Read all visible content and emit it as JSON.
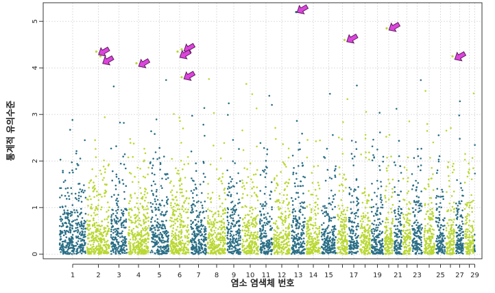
{
  "chart_data": {
    "type": "scatter",
    "title": "",
    "xlabel": "염소 염색체 번호",
    "ylabel": "통계적 유의수준",
    "ylim": [
      -0.1,
      5.4
    ],
    "yticks": [
      0,
      1,
      2,
      3,
      4,
      5
    ],
    "grid": true,
    "legend": "none",
    "colors": {
      "dark": "#2a6f86",
      "light": "#b9d832",
      "arrow_fill": "#dd44dd",
      "arrow_stroke": "#5a1a5a",
      "grid": "#dddddd"
    },
    "chromosomes": [
      "1",
      "2",
      "3",
      "4",
      "5",
      "6",
      "7",
      "8",
      "9",
      "10",
      "11",
      "12",
      "13",
      "14",
      "15",
      "16",
      "17",
      "18",
      "19",
      "20",
      "21",
      "22",
      "23",
      "24",
      "25",
      "26",
      "27",
      "28",
      "29"
    ],
    "xtick_labels": [
      "1",
      "2",
      "3",
      "4",
      "5",
      "6",
      "7",
      "8",
      "9",
      "10",
      "11",
      "12",
      "13",
      "14",
      "15",
      "17",
      "19",
      "21",
      "23",
      "25",
      "27",
      "29"
    ],
    "top_hits": [
      {
        "chr": "2",
        "value": 4.35
      },
      {
        "chr": "2",
        "value": 4.25
      },
      {
        "chr": "4",
        "value": 4.1
      },
      {
        "chr": "6",
        "value": 4.4
      },
      {
        "chr": "6",
        "value": 4.35
      },
      {
        "chr": "6",
        "value": 3.8
      },
      {
        "chr": "13",
        "value": 5.2
      },
      {
        "chr": "16",
        "value": 4.6
      },
      {
        "chr": "20",
        "value": 4.85
      },
      {
        "chr": "26",
        "value": 4.25
      }
    ]
  }
}
